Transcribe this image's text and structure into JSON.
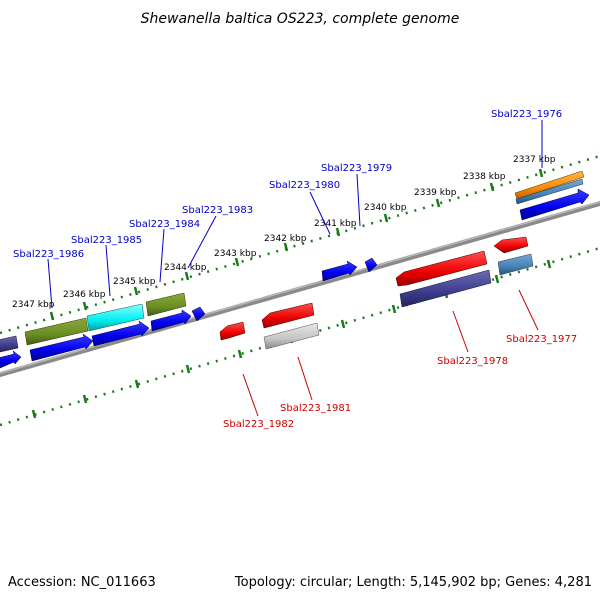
{
  "title": "Shewanella baltica OS223, complete genome",
  "footer": {
    "accession": "Accession: NC_011663",
    "stats": "Topology: circular; Length: 5,145,902 bp; Genes: 4,281"
  },
  "ticks": [
    {
      "label": "2337 kbp"
    },
    {
      "label": "2338 kbp"
    },
    {
      "label": "2339 kbp"
    },
    {
      "label": "2340 kbp"
    },
    {
      "label": "2341 kbp"
    },
    {
      "label": "2342 kbp"
    },
    {
      "label": "2343 kbp"
    },
    {
      "label": "2344 kbp"
    },
    {
      "label": "2345 kbp"
    },
    {
      "label": "2346 kbp"
    },
    {
      "label": "2347 kbp"
    }
  ],
  "gene_labels_top": [
    {
      "label": "Sbal223_1976"
    },
    {
      "label": "Sbal223_1979"
    },
    {
      "label": "Sbal223_1980"
    },
    {
      "label": "Sbal223_1983"
    },
    {
      "label": "Sbal223_1984"
    },
    {
      "label": "Sbal223_1985"
    },
    {
      "label": "Sbal223_1986"
    }
  ],
  "gene_labels_bottom": [
    {
      "label": "Sbal223_1977"
    },
    {
      "label": "Sbal223_1978"
    },
    {
      "label": "Sbal223_1981"
    },
    {
      "label": "Sbal223_1982"
    }
  ],
  "colors": {
    "forward_label": "#0000cc",
    "reverse_label": "#cc0000",
    "ruler": "#1a7a1a",
    "backbone": "#707070"
  }
}
